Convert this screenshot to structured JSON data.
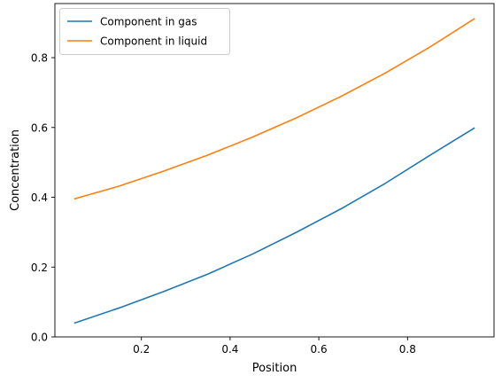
{
  "chart_data": {
    "type": "line",
    "xlabel": "Position",
    "ylabel": "Concentration",
    "xlim": [
      0.005,
      0.995
    ],
    "ylim": [
      0.0,
      0.955
    ],
    "xticks": [
      0.2,
      0.4,
      0.6,
      0.8
    ],
    "xtick_labels": [
      "0.2",
      "0.4",
      "0.6",
      "0.8"
    ],
    "yticks": [
      0.0,
      0.2,
      0.4,
      0.6,
      0.8
    ],
    "ytick_labels": [
      "0.0",
      "0.2",
      "0.4",
      "0.6",
      "0.8"
    ],
    "grid": false,
    "legend_position": "top-left",
    "x": [
      0.05,
      0.15,
      0.25,
      0.35,
      0.45,
      0.55,
      0.65,
      0.75,
      0.85,
      0.95
    ],
    "series": [
      {
        "name": "Component in gas",
        "color": "#1f77b4",
        "values": [
          0.04,
          0.083,
          0.13,
          0.18,
          0.237,
          0.3,
          0.367,
          0.44,
          0.52,
          0.598
        ]
      },
      {
        "name": "Component in liquid",
        "color": "#ff7f0e",
        "values": [
          0.396,
          0.432,
          0.475,
          0.521,
          0.572,
          0.628,
          0.689,
          0.756,
          0.83,
          0.911
        ]
      }
    ]
  }
}
